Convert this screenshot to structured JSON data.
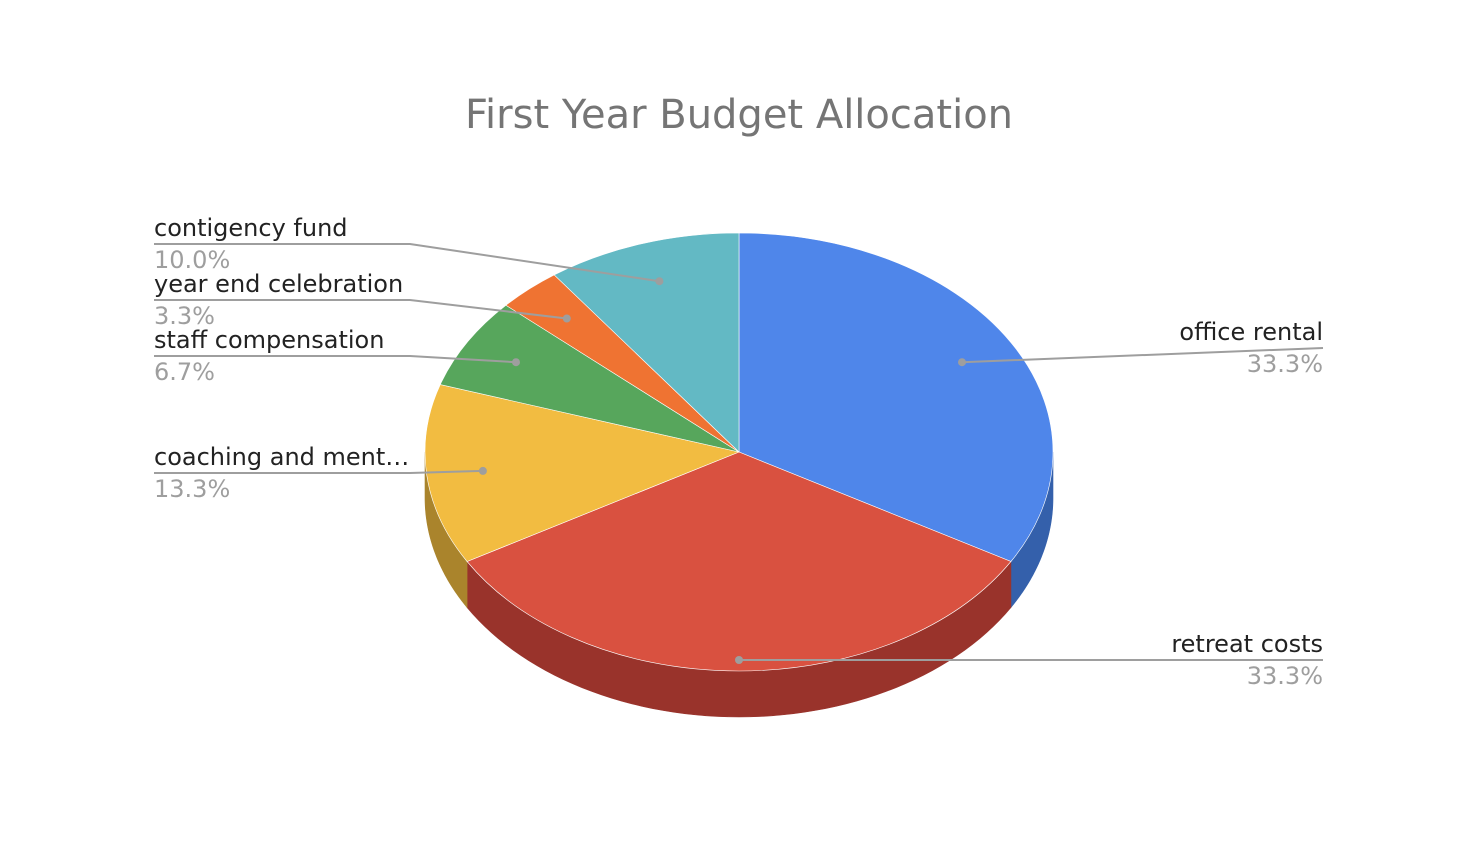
{
  "chart_data": {
    "type": "pie",
    "title": "First Year Budget Allocation",
    "three_d": true,
    "slices": [
      {
        "label": "office rental",
        "percent_label": "33.3%",
        "value": 33.3,
        "color": "#4f86ea",
        "side_color": "#3460ab"
      },
      {
        "label": "retreat costs",
        "percent_label": "33.3%",
        "value": 33.3,
        "color": "#d95140",
        "side_color": "#99332b"
      },
      {
        "label": "coaching and ment…",
        "percent_label": "13.3%",
        "value": 13.3,
        "color": "#f2bc41",
        "side_color": "#aa842c"
      },
      {
        "label": "staff compensation",
        "percent_label": "6.7%",
        "value": 6.7,
        "color": "#57a65c",
        "side_color": "#3c7540"
      },
      {
        "label": "year end celebration",
        "percent_label": "3.3%",
        "value": 3.3,
        "color": "#ef7332",
        "side_color": "#a85123"
      },
      {
        "label": "contigency fund",
        "percent_label": "10.0%",
        "value": 10.0,
        "color": "#63b9c4",
        "side_color": "#458289"
      }
    ],
    "legend": "none",
    "labels": "outside-with-leader-lines"
  }
}
